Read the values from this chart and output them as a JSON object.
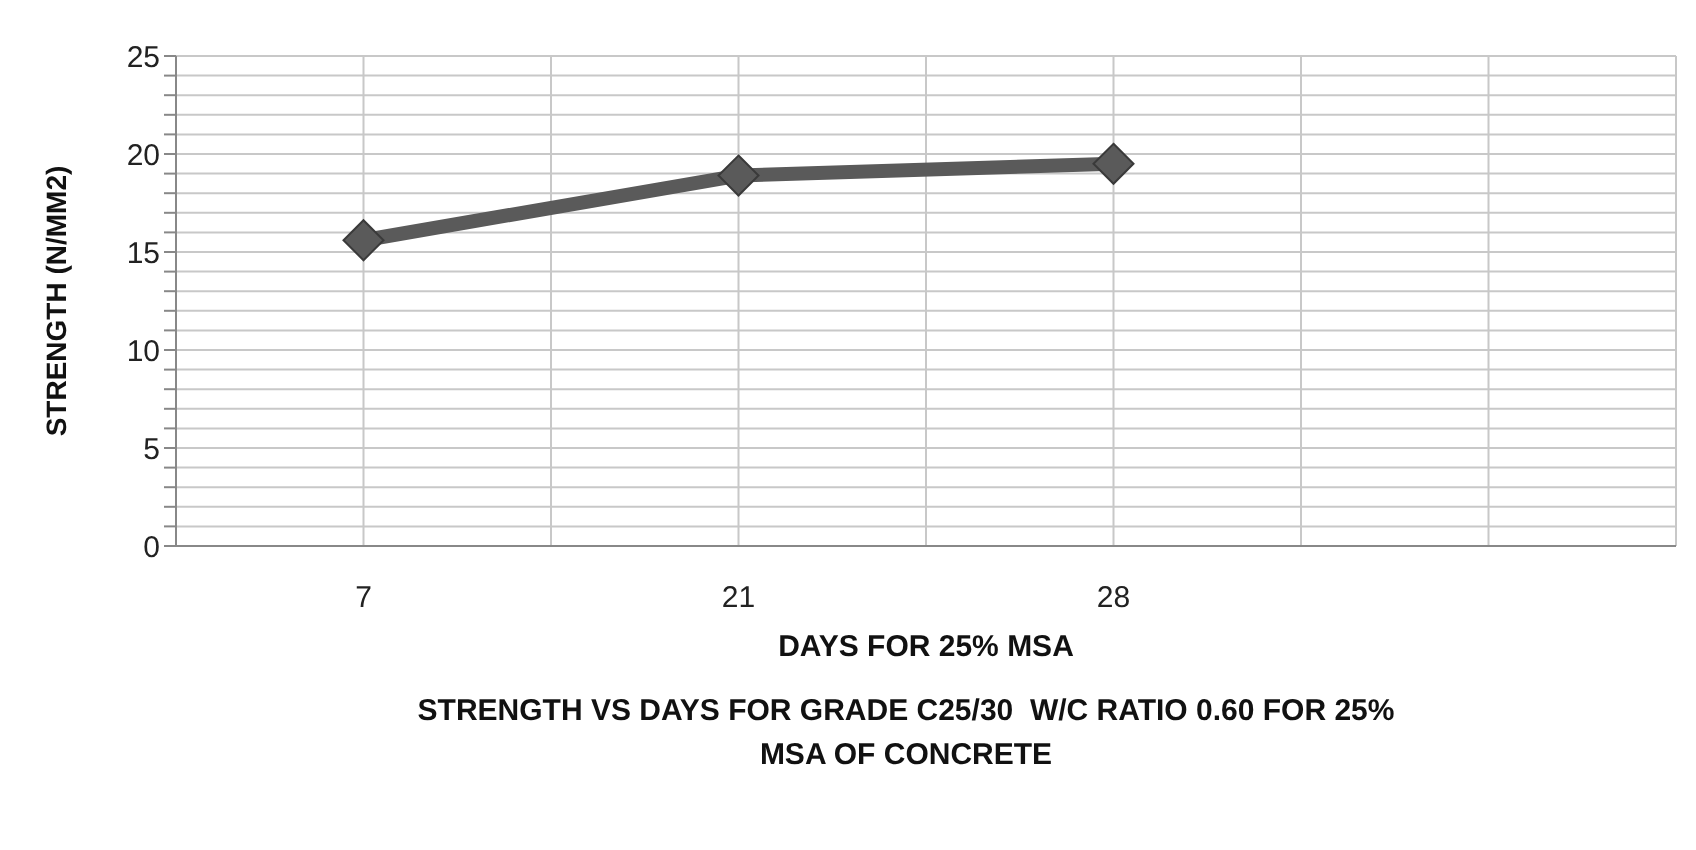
{
  "chart_data": {
    "type": "line",
    "title": "STRENGTH VS DAYS FOR GRADE C25/30  W/C RATIO 0.60 FOR 25% MSA OF CONCRETE",
    "xlabel": "DAYS FOR 25% MSA",
    "ylabel": "STRENGTH (N/MM2)",
    "categories": [
      "7",
      "21",
      "28",
      null
    ],
    "series": [
      {
        "color": "#5a5a5a",
        "values": [
          15.6,
          18.9,
          19.5,
          null
        ]
      }
    ],
    "ylim": [
      0,
      25
    ],
    "yticks": [
      0,
      {
        "value": 1,
        "label": null
      },
      {
        "value": 2,
        "label": null
      },
      {
        "value": 3,
        "label": null
      },
      {
        "value": 4,
        "label": null
      },
      5,
      {
        "value": 6,
        "label": null
      },
      {
        "value": 7,
        "label": null
      },
      {
        "value": 8,
        "label": null
      },
      {
        "value": 9,
        "label": null
      },
      10,
      {
        "value": 11,
        "label": null
      },
      {
        "value": 12,
        "label": null
      },
      {
        "value": 13,
        "label": null
      },
      {
        "value": 14,
        "label": null
      },
      15,
      {
        "value": 16,
        "label": null
      },
      {
        "value": 17,
        "label": null
      },
      {
        "value": 18,
        "label": null
      },
      {
        "value": 19,
        "label": null
      },
      20,
      {
        "value": 21,
        "label": null
      },
      {
        "value": 22,
        "label": null
      },
      {
        "value": 23,
        "label": null
      },
      {
        "value": 24,
        "label": null
      },
      25
    ],
    "grid": true,
    "marker": "diamond",
    "line_style": "solid"
  }
}
